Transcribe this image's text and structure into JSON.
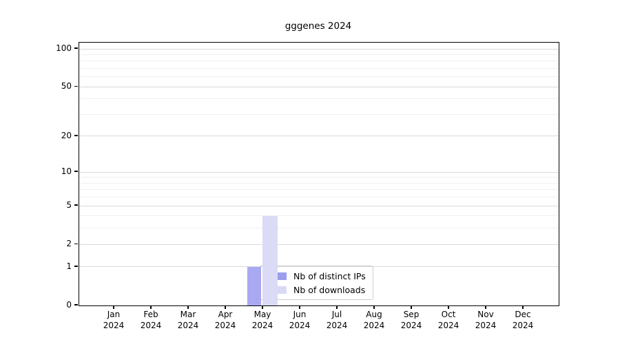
{
  "title": "gggenes 2024",
  "chart_data": {
    "type": "bar",
    "title": "gggenes 2024",
    "x_months": [
      "Jan",
      "Feb",
      "Mar",
      "Apr",
      "May",
      "Jun",
      "Jul",
      "Aug",
      "Sep",
      "Oct",
      "Nov",
      "Dec"
    ],
    "x_year": "2024",
    "series": [
      {
        "name": "Nb of distinct IPs",
        "bar_color": "#a9a9f2",
        "legend_color": "#9d9def",
        "values": [
          0,
          0,
          0,
          0,
          1,
          0,
          0,
          0,
          0,
          0,
          0,
          0
        ]
      },
      {
        "name": "Nb of downloads",
        "bar_color": "#dbdbf7",
        "legend_color": "#d9d9f6",
        "values": [
          0,
          0,
          0,
          0,
          4,
          0,
          0,
          0,
          0,
          0,
          0,
          0
        ]
      }
    ],
    "y_scale": "log1p",
    "y_tick_values": [
      0,
      1,
      2,
      5,
      10,
      20,
      50,
      100
    ],
    "y_minor_gridlines": [
      3,
      4,
      6,
      7,
      8,
      9,
      30,
      40,
      60,
      70,
      80,
      90
    ],
    "y_major_gridlines": [
      1,
      2,
      5,
      10,
      20,
      50,
      100
    ],
    "ylim": [
      0,
      112
    ],
    "grid": true,
    "legend_position": "lower-center-inside",
    "colors": {
      "grid_major": "#d8d8d8",
      "grid_minor": "#efefef",
      "spine": "#000000",
      "background": "#ffffff"
    }
  }
}
